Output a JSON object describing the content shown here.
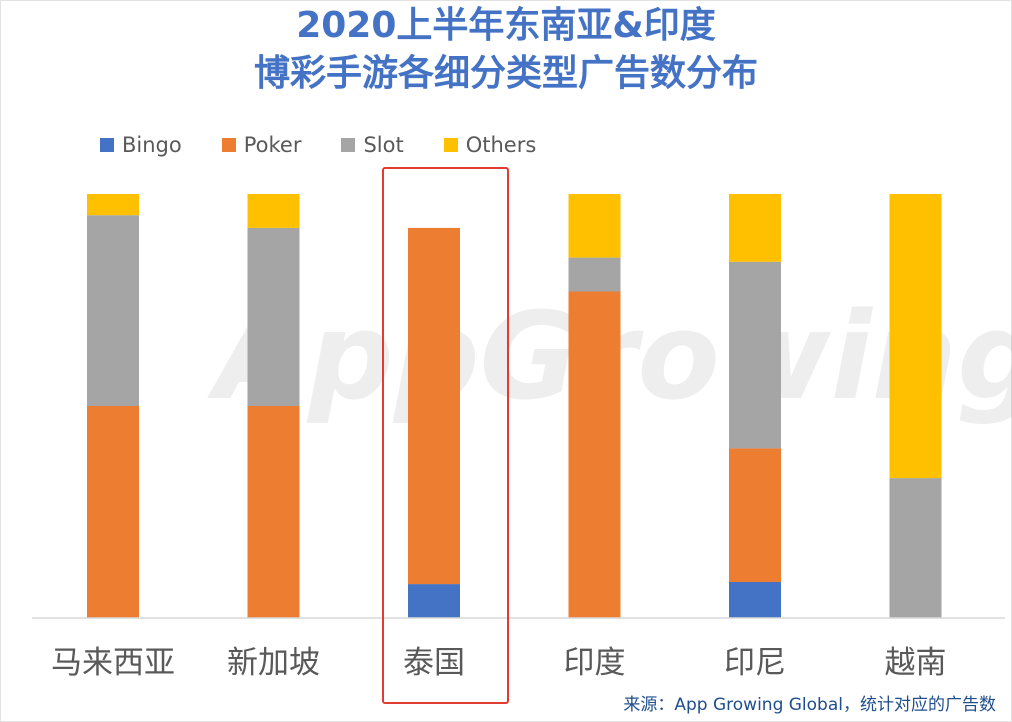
{
  "chart_data": {
    "type": "bar",
    "stacked": true,
    "normalized": true,
    "title": [
      "2020上半年东南亚&印度",
      "博彩手游各细分类型广告数分布"
    ],
    "categories": [
      "马来西亚",
      "新加坡",
      "泰国",
      "印度",
      "印尼",
      "越南"
    ],
    "series": [
      {
        "name": "Bingo",
        "color": "#4472c4",
        "values": [
          0,
          0,
          8,
          0,
          8.5,
          0
        ]
      },
      {
        "name": "Poker",
        "color": "#ed7d31",
        "values": [
          50,
          50,
          84,
          77,
          31.5,
          0
        ]
      },
      {
        "name": "Slot",
        "color": "#a5a5a5",
        "values": [
          45,
          42,
          0,
          8,
          44,
          33
        ]
      },
      {
        "name": "Others",
        "color": "#ffc000",
        "values": [
          5,
          8,
          0,
          15,
          16,
          67
        ]
      }
    ],
    "ylim": [
      0,
      100
    ],
    "legend_position": "top-left",
    "highlighted_category": "泰国",
    "watermark": "AppGrowing Global"
  },
  "source_note": "来源：App Growing Global，统计对应的广告数"
}
